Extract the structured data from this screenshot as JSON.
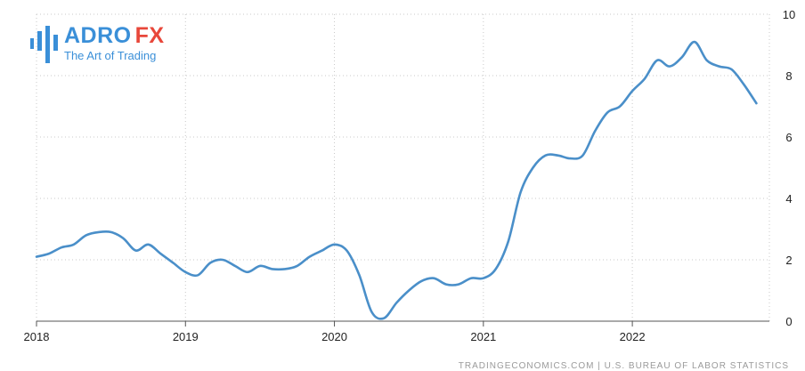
{
  "logo": {
    "brand_part1": "ADRO",
    "brand_part2": "FX",
    "tagline": "The Art of Trading"
  },
  "source": "TRADINGECONOMICS.COM | U.S. BUREAU OF LABOR STATISTICS",
  "colors": {
    "line": "#4a8fc9",
    "grid": "#c8c8c8",
    "brand_blue": "#3a8fd8",
    "brand_red": "#e8473a"
  },
  "chart_data": {
    "type": "line",
    "title": "",
    "xlabel": "",
    "ylabel": "",
    "xlim": [
      2018.0,
      2022.92
    ],
    "ylim": [
      0,
      10
    ],
    "grid": true,
    "y_axis_side": "right",
    "x_ticks": [
      "2018",
      "2019",
      "2020",
      "2021",
      "2022"
    ],
    "y_ticks": [
      "0",
      "2",
      "4",
      "6",
      "8",
      "10"
    ],
    "series": [
      {
        "name": "",
        "x": [
          2018.0,
          2018.083,
          2018.167,
          2018.25,
          2018.333,
          2018.417,
          2018.5,
          2018.583,
          2018.667,
          2018.75,
          2018.833,
          2018.917,
          2019.0,
          2019.083,
          2019.167,
          2019.25,
          2019.333,
          2019.417,
          2019.5,
          2019.583,
          2019.667,
          2019.75,
          2019.833,
          2019.917,
          2020.0,
          2020.083,
          2020.167,
          2020.25,
          2020.333,
          2020.417,
          2020.5,
          2020.583,
          2020.667,
          2020.75,
          2020.833,
          2020.917,
          2021.0,
          2021.083,
          2021.167,
          2021.25,
          2021.333,
          2021.417,
          2021.5,
          2021.583,
          2021.667,
          2021.75,
          2021.833,
          2021.917,
          2022.0,
          2022.083,
          2022.167,
          2022.25,
          2022.333,
          2022.417,
          2022.5,
          2022.583,
          2022.667,
          2022.75,
          2022.833
        ],
        "values": [
          2.1,
          2.2,
          2.4,
          2.5,
          2.8,
          2.9,
          2.9,
          2.7,
          2.3,
          2.5,
          2.2,
          1.9,
          1.6,
          1.5,
          1.9,
          2.0,
          1.8,
          1.6,
          1.8,
          1.7,
          1.7,
          1.8,
          2.1,
          2.3,
          2.5,
          2.3,
          1.5,
          0.3,
          0.1,
          0.6,
          1.0,
          1.3,
          1.4,
          1.2,
          1.2,
          1.4,
          1.4,
          1.7,
          2.6,
          4.2,
          5.0,
          5.4,
          5.4,
          5.3,
          5.4,
          6.2,
          6.8,
          7.0,
          7.5,
          7.9,
          8.5,
          8.3,
          8.6,
          9.1,
          8.5,
          8.3,
          8.2,
          7.7,
          7.1
        ]
      }
    ]
  }
}
